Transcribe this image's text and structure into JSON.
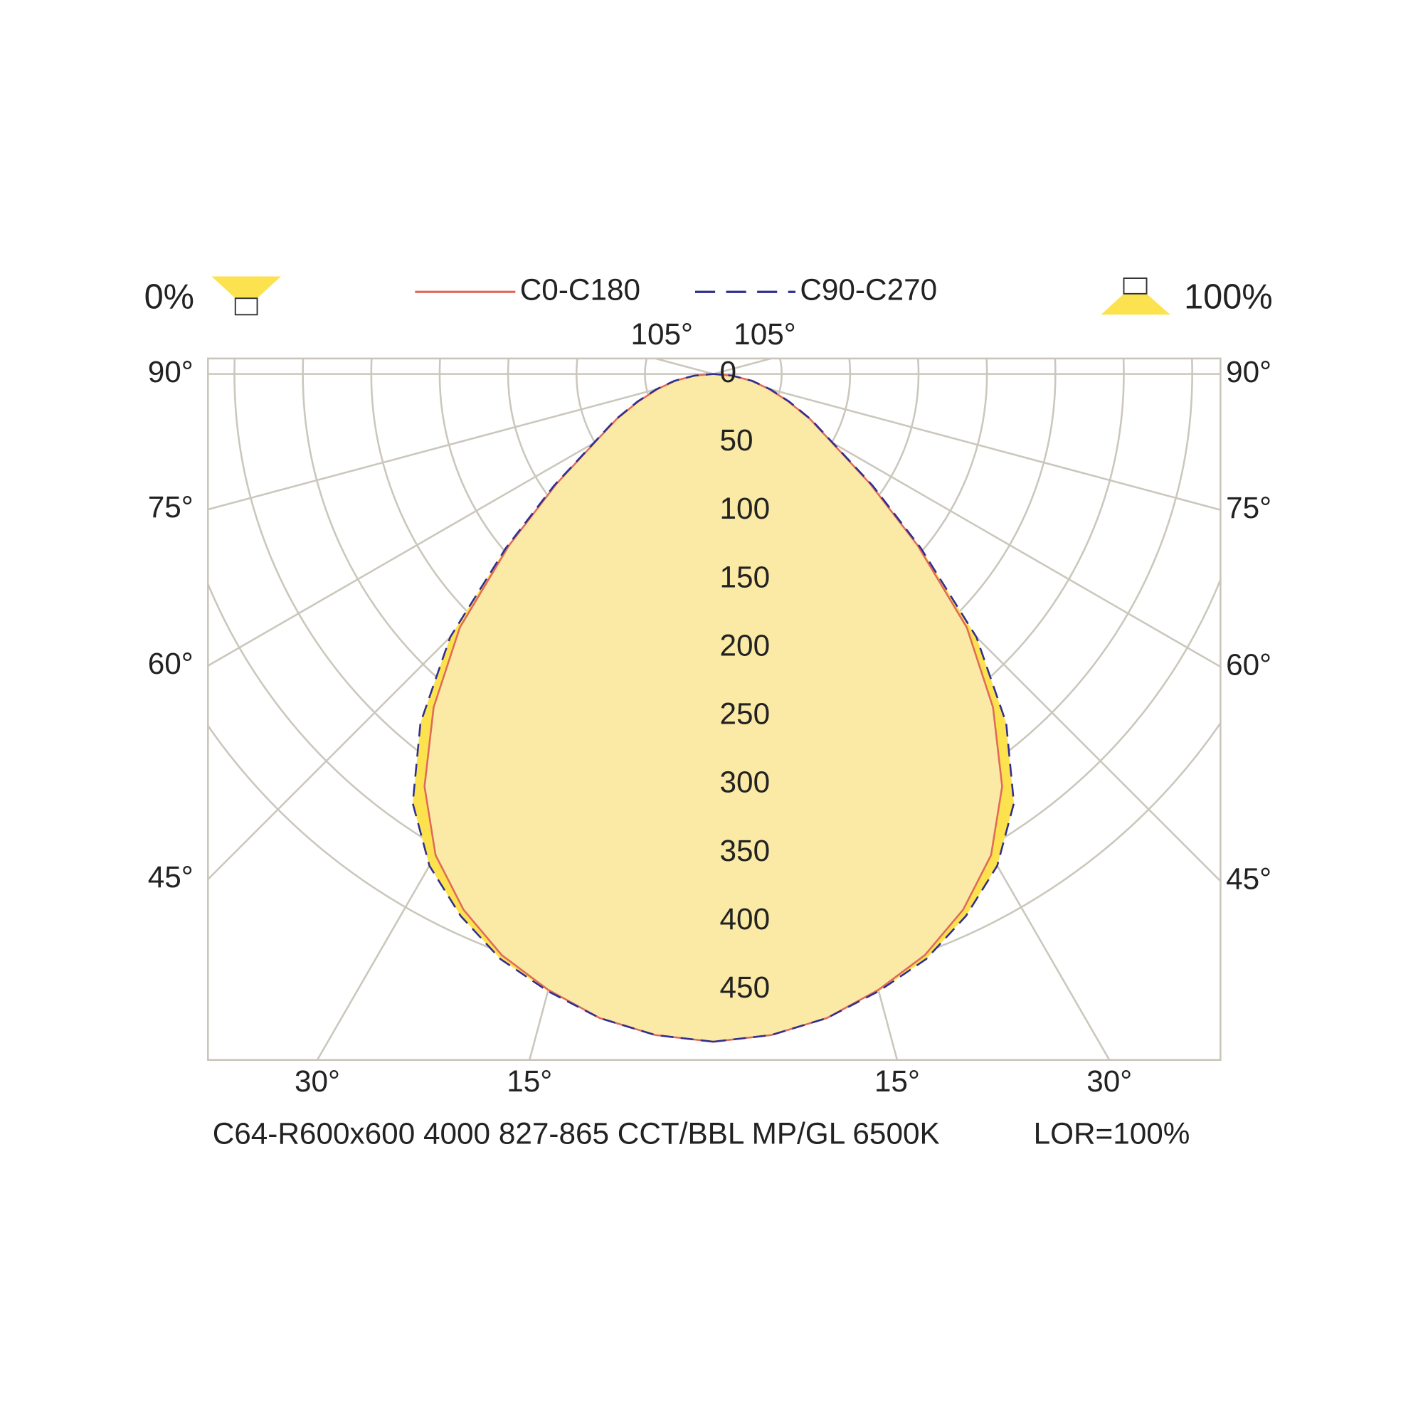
{
  "chart_data": {
    "type": "polar-intensity",
    "legend_left": "0%",
    "legend_right": "100%",
    "footer": "C64-R600x600 4000 827-865 CCT/BBL MP/GL 6500K",
    "lor": "LOR=100%",
    "angles": [
      0,
      5,
      10,
      15,
      20,
      25,
      30,
      35,
      40,
      45,
      50,
      55,
      60,
      65,
      70,
      75,
      80,
      85,
      90
    ],
    "series": [
      {
        "name": "C0-C180",
        "color": "#e06a5a",
        "dash": false,
        "values": [
          488,
          485,
          478,
          466,
          452,
          432,
          406,
          368,
          318,
          262,
          195,
          140,
          100,
          78,
          58,
          42,
          28,
          14,
          0
        ]
      },
      {
        "name": "C90-C270",
        "color": "#2f2f8f",
        "dash": true,
        "values": [
          488,
          485,
          478,
          467,
          455,
          437,
          415,
          383,
          333,
          272,
          198,
          142,
          101,
          79,
          59,
          43,
          29,
          14,
          0
        ]
      }
    ],
    "rticks": [
      0,
      50,
      100,
      150,
      200,
      250,
      300,
      350,
      400,
      450
    ],
    "angle_ticks": [
      {
        "value": 15,
        "label": "15°"
      },
      {
        "value": 30,
        "label": "30°"
      },
      {
        "value": 45,
        "label": "45°"
      },
      {
        "value": 60,
        "label": "60°"
      },
      {
        "value": 75,
        "label": "75°"
      },
      {
        "value": 90,
        "label": "90°"
      },
      {
        "value": 105,
        "label": "105°"
      }
    ],
    "grid": true
  }
}
